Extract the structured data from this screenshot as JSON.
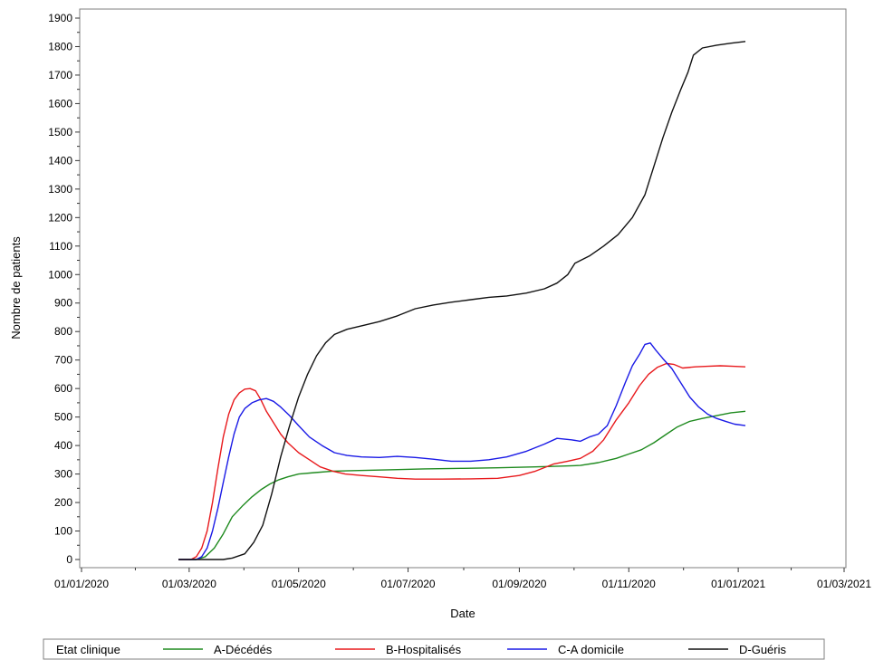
{
  "chart_data": {
    "type": "line",
    "xlabel": "Date",
    "ylabel": "Nombre de patients",
    "ylim": [
      0,
      1900
    ],
    "xlim": [
      "2020-01-01",
      "2021-03-01"
    ],
    "x_ticks": [
      "01/01/2020",
      "01/03/2020",
      "01/05/2020",
      "01/07/2020",
      "01/09/2020",
      "01/11/2020",
      "01/01/2021",
      "01/03/2021"
    ],
    "y_ticks": [
      0,
      100,
      200,
      300,
      400,
      500,
      600,
      700,
      800,
      900,
      1000,
      1100,
      1200,
      1300,
      1400,
      1500,
      1600,
      1700,
      1800,
      1900
    ],
    "grid": false,
    "legend": {
      "title": "Etat clinique",
      "position": "bottom"
    },
    "series": [
      {
        "name": "A-Décédés",
        "color": "#1e8a1e",
        "points": [
          [
            "2020-02-24",
            0
          ],
          [
            "2020-03-05",
            0
          ],
          [
            "2020-03-10",
            10
          ],
          [
            "2020-03-15",
            40
          ],
          [
            "2020-03-20",
            90
          ],
          [
            "2020-03-25",
            150
          ],
          [
            "2020-03-31",
            190
          ],
          [
            "2020-04-05",
            220
          ],
          [
            "2020-04-10",
            245
          ],
          [
            "2020-04-15",
            265
          ],
          [
            "2020-04-20",
            280
          ],
          [
            "2020-04-25",
            290
          ],
          [
            "2020-05-01",
            300
          ],
          [
            "2020-05-10",
            305
          ],
          [
            "2020-05-20",
            310
          ],
          [
            "2020-06-01",
            312
          ],
          [
            "2020-06-20",
            315
          ],
          [
            "2020-07-10",
            318
          ],
          [
            "2020-08-01",
            320
          ],
          [
            "2020-08-20",
            322
          ],
          [
            "2020-09-10",
            325
          ],
          [
            "2020-09-25",
            328
          ],
          [
            "2020-10-05",
            330
          ],
          [
            "2020-10-15",
            340
          ],
          [
            "2020-10-25",
            355
          ],
          [
            "2020-11-01",
            370
          ],
          [
            "2020-11-08",
            385
          ],
          [
            "2020-11-15",
            410
          ],
          [
            "2020-11-22",
            440
          ],
          [
            "2020-11-28",
            465
          ],
          [
            "2020-12-05",
            485
          ],
          [
            "2020-12-12",
            495
          ],
          [
            "2020-12-20",
            505
          ],
          [
            "2020-12-28",
            515
          ],
          [
            "2021-01-05",
            520
          ]
        ]
      },
      {
        "name": "B-Hospitalisés",
        "color": "#e8191c",
        "points": [
          [
            "2020-02-24",
            0
          ],
          [
            "2020-03-02",
            0
          ],
          [
            "2020-03-05",
            10
          ],
          [
            "2020-03-08",
            40
          ],
          [
            "2020-03-11",
            100
          ],
          [
            "2020-03-14",
            200
          ],
          [
            "2020-03-17",
            320
          ],
          [
            "2020-03-20",
            430
          ],
          [
            "2020-03-23",
            510
          ],
          [
            "2020-03-26",
            560
          ],
          [
            "2020-03-29",
            585
          ],
          [
            "2020-04-01",
            598
          ],
          [
            "2020-04-04",
            600
          ],
          [
            "2020-04-07",
            592
          ],
          [
            "2020-04-10",
            560
          ],
          [
            "2020-04-13",
            520
          ],
          [
            "2020-04-17",
            480
          ],
          [
            "2020-04-21",
            440
          ],
          [
            "2020-04-25",
            410
          ],
          [
            "2020-05-01",
            375
          ],
          [
            "2020-05-07",
            350
          ],
          [
            "2020-05-13",
            325
          ],
          [
            "2020-05-20",
            310
          ],
          [
            "2020-05-27",
            300
          ],
          [
            "2020-06-05",
            295
          ],
          [
            "2020-06-15",
            290
          ],
          [
            "2020-06-25",
            285
          ],
          [
            "2020-07-05",
            282
          ],
          [
            "2020-07-20",
            282
          ],
          [
            "2020-08-05",
            283
          ],
          [
            "2020-08-20",
            285
          ],
          [
            "2020-09-01",
            295
          ],
          [
            "2020-09-10",
            310
          ],
          [
            "2020-09-20",
            335
          ],
          [
            "2020-09-28",
            345
          ],
          [
            "2020-10-05",
            355
          ],
          [
            "2020-10-12",
            380
          ],
          [
            "2020-10-18",
            420
          ],
          [
            "2020-10-25",
            490
          ],
          [
            "2020-11-01",
            550
          ],
          [
            "2020-11-07",
            610
          ],
          [
            "2020-11-12",
            650
          ],
          [
            "2020-11-17",
            675
          ],
          [
            "2020-11-22",
            688
          ],
          [
            "2020-11-26",
            685
          ],
          [
            "2020-12-01",
            672
          ],
          [
            "2020-12-08",
            676
          ],
          [
            "2020-12-15",
            678
          ],
          [
            "2020-12-22",
            680
          ],
          [
            "2020-12-29",
            678
          ],
          [
            "2021-01-05",
            676
          ]
        ]
      },
      {
        "name": "C-A domicile",
        "color": "#1a1ae6",
        "points": [
          [
            "2020-02-24",
            0
          ],
          [
            "2020-03-05",
            0
          ],
          [
            "2020-03-08",
            10
          ],
          [
            "2020-03-11",
            40
          ],
          [
            "2020-03-14",
            100
          ],
          [
            "2020-03-17",
            180
          ],
          [
            "2020-03-20",
            270
          ],
          [
            "2020-03-23",
            360
          ],
          [
            "2020-03-26",
            440
          ],
          [
            "2020-03-29",
            500
          ],
          [
            "2020-04-01",
            530
          ],
          [
            "2020-04-05",
            550
          ],
          [
            "2020-04-09",
            560
          ],
          [
            "2020-04-13",
            565
          ],
          [
            "2020-04-17",
            555
          ],
          [
            "2020-04-21",
            535
          ],
          [
            "2020-04-26",
            505
          ],
          [
            "2020-05-01",
            470
          ],
          [
            "2020-05-07",
            430
          ],
          [
            "2020-05-14",
            400
          ],
          [
            "2020-05-21",
            375
          ],
          [
            "2020-05-28",
            365
          ],
          [
            "2020-06-05",
            360
          ],
          [
            "2020-06-15",
            358
          ],
          [
            "2020-06-25",
            362
          ],
          [
            "2020-07-05",
            358
          ],
          [
            "2020-07-15",
            352
          ],
          [
            "2020-07-25",
            345
          ],
          [
            "2020-08-05",
            345
          ],
          [
            "2020-08-15",
            350
          ],
          [
            "2020-08-25",
            360
          ],
          [
            "2020-09-05",
            380
          ],
          [
            "2020-09-15",
            405
          ],
          [
            "2020-09-22",
            425
          ],
          [
            "2020-09-30",
            420
          ],
          [
            "2020-10-05",
            415
          ],
          [
            "2020-10-10",
            430
          ],
          [
            "2020-10-15",
            440
          ],
          [
            "2020-10-20",
            470
          ],
          [
            "2020-10-25",
            540
          ],
          [
            "2020-10-30",
            620
          ],
          [
            "2020-11-03",
            680
          ],
          [
            "2020-11-07",
            720
          ],
          [
            "2020-11-10",
            755
          ],
          [
            "2020-11-13",
            760
          ],
          [
            "2020-11-16",
            735
          ],
          [
            "2020-11-20",
            705
          ],
          [
            "2020-11-25",
            670
          ],
          [
            "2020-11-30",
            620
          ],
          [
            "2020-12-05",
            570
          ],
          [
            "2020-12-10",
            535
          ],
          [
            "2020-12-15",
            510
          ],
          [
            "2020-12-20",
            495
          ],
          [
            "2020-12-25",
            485
          ],
          [
            "2020-12-30",
            475
          ],
          [
            "2021-01-05",
            470
          ]
        ]
      },
      {
        "name": "D-Guéris",
        "color": "#111111",
        "points": [
          [
            "2020-02-24",
            0
          ],
          [
            "2020-03-20",
            0
          ],
          [
            "2020-03-25",
            5
          ],
          [
            "2020-04-01",
            20
          ],
          [
            "2020-04-06",
            60
          ],
          [
            "2020-04-11",
            120
          ],
          [
            "2020-04-16",
            230
          ],
          [
            "2020-04-21",
            360
          ],
          [
            "2020-04-26",
            470
          ],
          [
            "2020-05-01",
            570
          ],
          [
            "2020-05-06",
            650
          ],
          [
            "2020-05-11",
            715
          ],
          [
            "2020-05-16",
            760
          ],
          [
            "2020-05-21",
            790
          ],
          [
            "2020-05-28",
            808
          ],
          [
            "2020-06-05",
            820
          ],
          [
            "2020-06-15",
            835
          ],
          [
            "2020-06-25",
            855
          ],
          [
            "2020-07-05",
            880
          ],
          [
            "2020-07-15",
            893
          ],
          [
            "2020-07-25",
            903
          ],
          [
            "2020-08-05",
            912
          ],
          [
            "2020-08-15",
            920
          ],
          [
            "2020-08-25",
            925
          ],
          [
            "2020-09-05",
            935
          ],
          [
            "2020-09-15",
            950
          ],
          [
            "2020-09-22",
            970
          ],
          [
            "2020-09-28",
            1000
          ],
          [
            "2020-10-02",
            1040
          ],
          [
            "2020-10-10",
            1065
          ],
          [
            "2020-10-18",
            1100
          ],
          [
            "2020-10-26",
            1140
          ],
          [
            "2020-11-03",
            1200
          ],
          [
            "2020-11-10",
            1280
          ],
          [
            "2020-11-15",
            1380
          ],
          [
            "2020-11-20",
            1480
          ],
          [
            "2020-11-25",
            1570
          ],
          [
            "2020-11-30",
            1650
          ],
          [
            "2020-12-04",
            1710
          ],
          [
            "2020-12-07",
            1770
          ],
          [
            "2020-12-12",
            1795
          ],
          [
            "2020-12-20",
            1805
          ],
          [
            "2020-12-28",
            1812
          ],
          [
            "2021-01-05",
            1818
          ]
        ]
      }
    ]
  }
}
